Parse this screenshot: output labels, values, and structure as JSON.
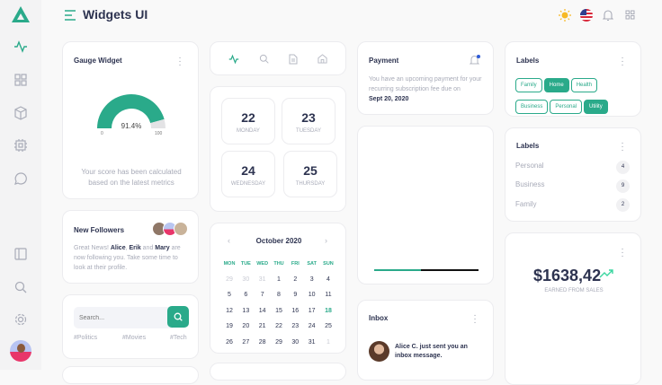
{
  "header": {
    "title": "Widgets UI"
  },
  "colors": {
    "accent": "#2aaa8a",
    "text": "#2d3350",
    "muted": "#a8abb8"
  },
  "sidebar": {
    "icons": [
      "logo-icon",
      "activity-icon",
      "grid-icon",
      "box-icon",
      "cpu-icon",
      "chat-icon",
      "sidebar-icon",
      "search-icon",
      "settings-icon",
      "avatar"
    ]
  },
  "gauge": {
    "title": "Gauge Widget",
    "value": "91.4%",
    "percent": 91.4,
    "min": "0",
    "max": "100",
    "caption": "Your score has been calculated based on the latest metrics"
  },
  "dates": [
    {
      "day": "22",
      "name": "MONDAY"
    },
    {
      "day": "23",
      "name": "TUESDAY"
    },
    {
      "day": "24",
      "name": "WEDNESDAY"
    },
    {
      "day": "25",
      "name": "THURSDAY"
    }
  ],
  "payment": {
    "title": "Payment",
    "text": "You have an upcoming payment for your recurring subscription fee due on",
    "date": "Sept 20, 2020"
  },
  "labels": {
    "title": "Labels",
    "tags": [
      {
        "label": "Family",
        "active": false
      },
      {
        "label": "Home",
        "active": true
      },
      {
        "label": "Health",
        "active": false
      },
      {
        "label": "Business",
        "active": false
      },
      {
        "label": "Personal",
        "active": false
      },
      {
        "label": "Utility",
        "active": true
      }
    ]
  },
  "labels_list": {
    "title": "Labels",
    "items": [
      {
        "label": "Personal",
        "count": "4"
      },
      {
        "label": "Business",
        "count": "9"
      },
      {
        "label": "Family",
        "count": "2"
      }
    ]
  },
  "followers": {
    "title": "New Followers",
    "pre": "Great News! ",
    "n1": "Alice",
    "sep1": ", ",
    "n2": "Erik",
    "sep2": " and ",
    "n3": "Mary",
    "post": " are now following you. Take some time to look at their profile."
  },
  "search": {
    "placeholder": "Search...",
    "tags": [
      "#Politics",
      "#Movies",
      "#Tech"
    ]
  },
  "calendar": {
    "month": "October 2020",
    "weekdays": [
      "MON",
      "TUE",
      "WED",
      "THU",
      "FRI",
      "SAT",
      "SUN"
    ],
    "weeks": [
      [
        "29",
        "30",
        "31",
        "1",
        "2",
        "3",
        "4"
      ],
      [
        "5",
        "6",
        "7",
        "8",
        "9",
        "10",
        "11"
      ],
      [
        "12",
        "13",
        "14",
        "15",
        "16",
        "17",
        "18"
      ],
      [
        "19",
        "20",
        "21",
        "22",
        "23",
        "24",
        "25"
      ],
      [
        "26",
        "27",
        "28",
        "29",
        "30",
        "31",
        "1"
      ]
    ],
    "today": "18"
  },
  "progress": {
    "percent": 45
  },
  "sales": {
    "amount": "$1638,42",
    "caption": "EARNED FROM SALES"
  },
  "inbox": {
    "title": "Inbox",
    "message": "Alice C. just sent you an inbox message."
  }
}
